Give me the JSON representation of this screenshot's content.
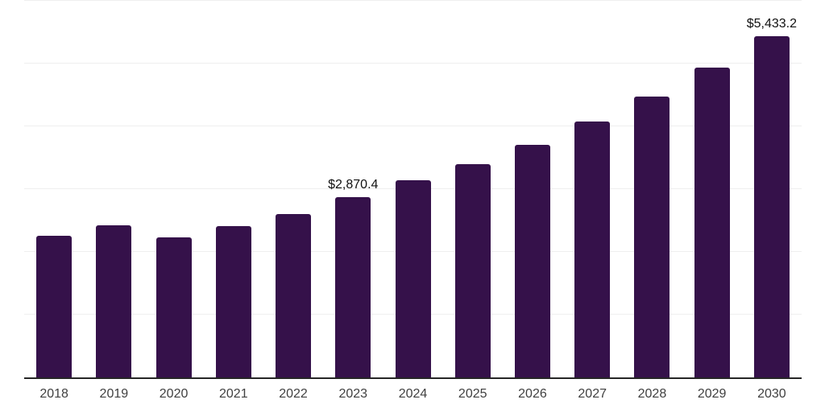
{
  "chart_data": {
    "type": "bar",
    "title": "",
    "xlabel": "",
    "ylabel": "",
    "categories": [
      "2018",
      "2019",
      "2020",
      "2021",
      "2022",
      "2023",
      "2024",
      "2025",
      "2026",
      "2027",
      "2028",
      "2029",
      "2030"
    ],
    "values": [
      2255,
      2425,
      2235,
      2415,
      2600,
      2870.4,
      3135,
      3400,
      3705,
      4075,
      4475,
      4935,
      5433.2
    ],
    "data_labels": {
      "2023": "$2,870.4",
      "2030": "$5,433.2"
    },
    "ylim": [
      0,
      6000
    ],
    "y_gridline_step": 1000,
    "y_axis_tick_labels_visible": false,
    "grid": "horizontal",
    "legend": "none",
    "colors": {
      "bar": "#35114A",
      "gridline": "#EFEFEF",
      "axis_line": "#262626",
      "tick_label": "#404040",
      "data_label": "#111111",
      "background": "#FFFFFF"
    }
  }
}
